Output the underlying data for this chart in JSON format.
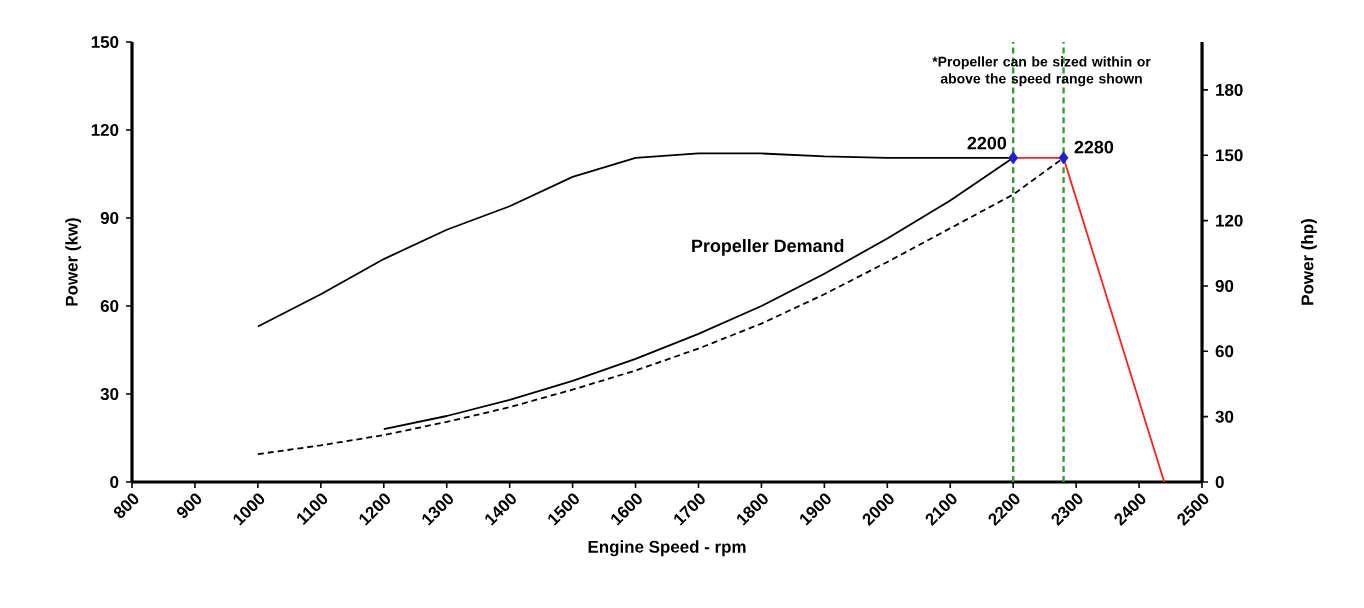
{
  "chart_data": {
    "type": "line",
    "xlabel": "Engine Speed - rpm",
    "ylabel": "Power (kw)",
    "y2label": "Power (hp)",
    "xlim": [
      800,
      2500
    ],
    "xticks": [
      800,
      900,
      1000,
      1100,
      1200,
      1300,
      1400,
      1500,
      1600,
      1700,
      1800,
      1900,
      2000,
      2100,
      2200,
      2300,
      2400,
      2500
    ],
    "ylim": [
      0,
      150
    ],
    "yticks": [
      0,
      30,
      60,
      90,
      120,
      150
    ],
    "y2lim": [
      0,
      202
    ],
    "y2ticks": [
      0,
      30,
      60,
      90,
      120,
      150,
      180
    ],
    "grid": false,
    "series": [
      {
        "color": "#000000",
        "line_style": "solid",
        "x": [
          1000,
          1100,
          1200,
          1300,
          1400,
          1500,
          1600,
          1700,
          1800,
          1900,
          2000,
          2100,
          2200
        ],
        "values": [
          53,
          64,
          76,
          86,
          94,
          104,
          110.5,
          112,
          112,
          111,
          110.5,
          110.5,
          110.5
        ]
      },
      {
        "color": "#000000",
        "line_style": "solid",
        "x": [
          1200,
          1300,
          1400,
          1500,
          1600,
          1700,
          1800,
          1900,
          2000,
          2100,
          2200
        ],
        "values": [
          18,
          22.5,
          28,
          34.5,
          42,
          50.5,
          60,
          71,
          83,
          96,
          110.5
        ]
      },
      {
        "color": "#000000",
        "line_style": "dashed",
        "x": [
          1000,
          1100,
          1200,
          1300,
          1400,
          1500,
          1600,
          1700,
          1800,
          1900,
          2000,
          2100,
          2200,
          2280
        ],
        "values": [
          9.5,
          12.5,
          16,
          20.5,
          25.5,
          31.5,
          38,
          45.5,
          54,
          64,
          75,
          86.5,
          98,
          110.5
        ]
      },
      {
        "color": "#ff2020",
        "line_style": "solid",
        "x": [
          2200,
          2280,
          2440
        ],
        "values": [
          110.5,
          110.5,
          0
        ]
      },
      {
        "type": "scatter",
        "color": "#1f1fd0",
        "marker": "diamond",
        "x": [
          2200,
          2280
        ],
        "values": [
          110.5,
          110.5
        ]
      }
    ],
    "ref_lines": [
      {
        "axis": "x",
        "value": 2200,
        "color": "#3a9a3a",
        "line_style": "dashed"
      },
      {
        "axis": "x",
        "value": 2280,
        "color": "#3a9a3a",
        "line_style": "dashed"
      }
    ],
    "annotations": [
      "*Propeller can be sized within or above the speed range shown",
      {
        "text": "2200",
        "x": 2200,
        "y": 110.5
      },
      {
        "text": "2280",
        "x": 2280,
        "y": 110.5
      },
      "Propeller Demand"
    ]
  }
}
